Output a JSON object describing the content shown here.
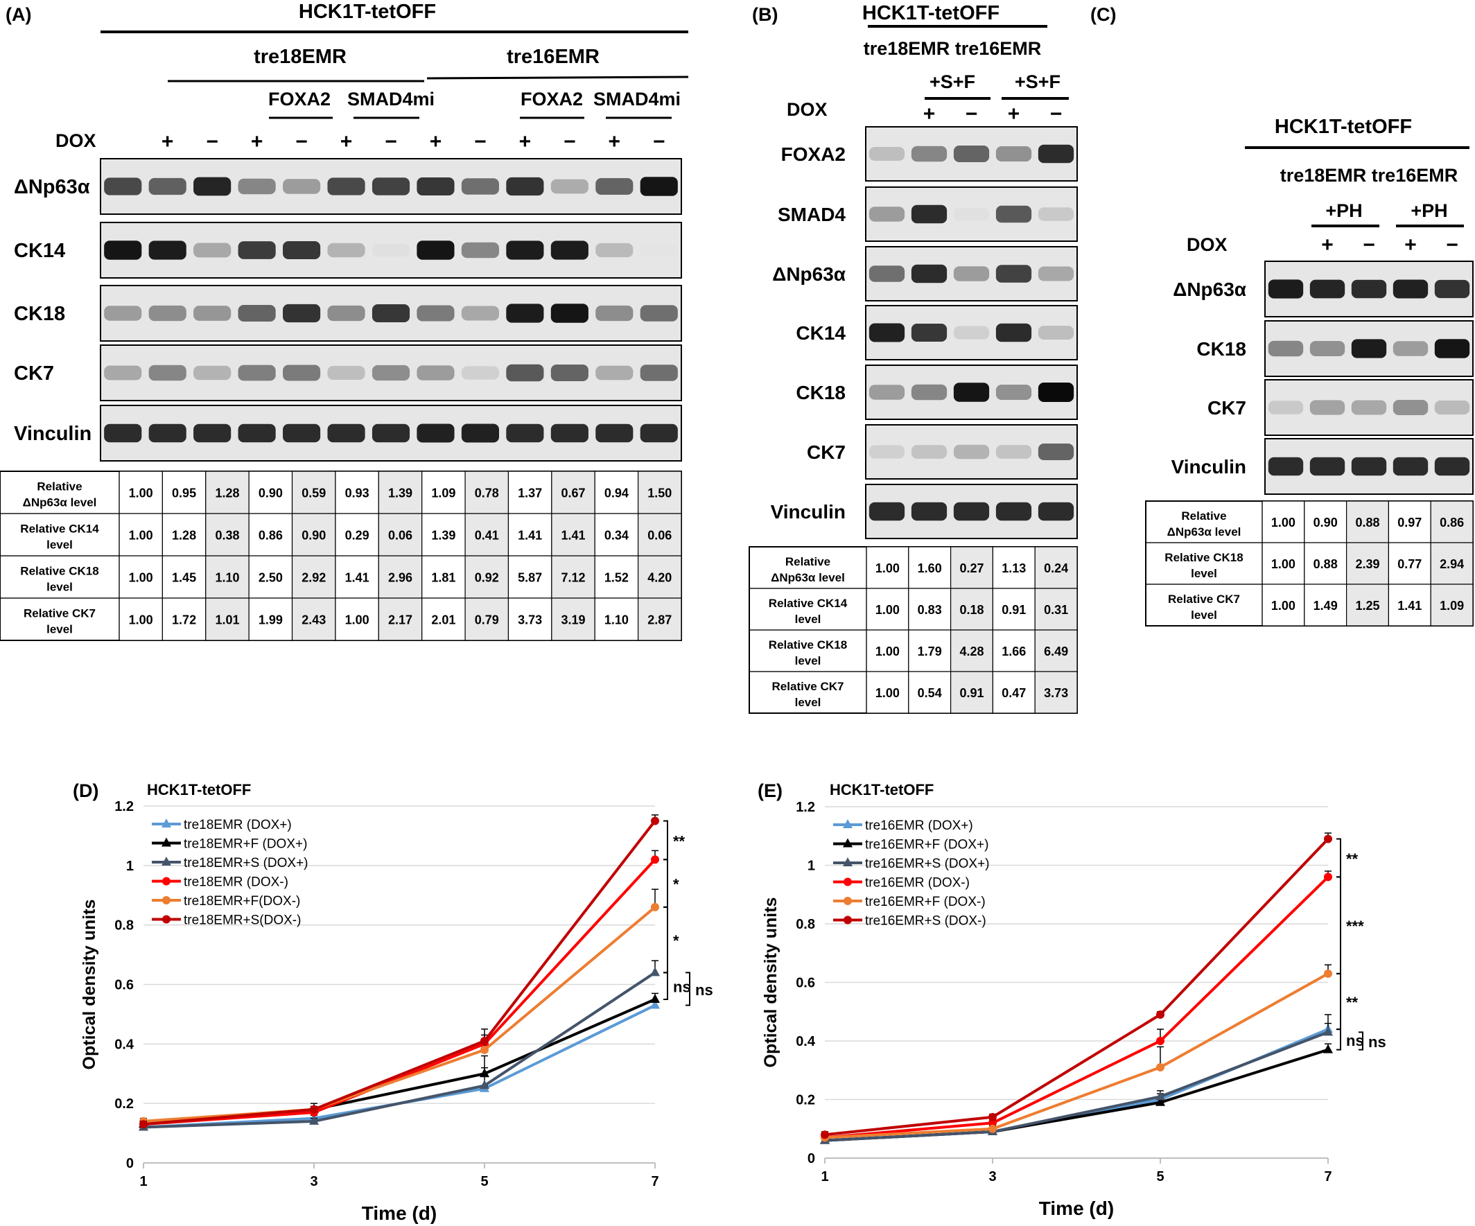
{
  "colors": {
    "tre": "#5b9bd5",
    "treF": "#000000",
    "treS": "#44546a",
    "treMinus": "#ff0000",
    "treFMinus": "#ed7d31",
    "treSMinus": "#c00000"
  },
  "panelA": {
    "letter": "(A)",
    "title": "HCK1T-tetOFF",
    "group1": "tre18EMR",
    "group2": "tre16EMR",
    "sub": [
      "FOXA2",
      "SMAD4mi",
      "FOXA2",
      "SMAD4mi"
    ],
    "dox_label": "DOX",
    "dox": [
      "+",
      "−",
      "+",
      "−",
      "+",
      "−",
      "+",
      "−",
      "+",
      "−",
      "+",
      "−"
    ],
    "blot_labels": [
      "ΔNp63α",
      "CK14",
      "CK18",
      "CK7",
      "Vinculin"
    ],
    "blot_int": [
      [
        0.72,
        0.62,
        0.88,
        0.45,
        0.35,
        0.72,
        0.75,
        0.8,
        0.55,
        0.82,
        0.28,
        0.6,
        0.95
      ],
      [
        0.95,
        0.92,
        0.3,
        0.78,
        0.8,
        0.25,
        0.05,
        0.95,
        0.45,
        0.92,
        0.92,
        0.22,
        0.03
      ],
      [
        0.35,
        0.42,
        0.38,
        0.6,
        0.82,
        0.42,
        0.8,
        0.5,
        0.3,
        0.92,
        0.95,
        0.42,
        0.55
      ],
      [
        0.3,
        0.45,
        0.25,
        0.48,
        0.5,
        0.2,
        0.42,
        0.35,
        0.12,
        0.65,
        0.6,
        0.28,
        0.55
      ],
      [
        0.85,
        0.85,
        0.85,
        0.85,
        0.85,
        0.85,
        0.85,
        0.9,
        0.9,
        0.85,
        0.85,
        0.85,
        0.85
      ]
    ],
    "rows": [
      {
        "label": [
          "Relative",
          "ΔNp63α level"
        ],
        "values": [
          "1.00",
          "0.95",
          "1.28",
          "0.90",
          "0.59",
          "0.93",
          "1.39",
          "1.09",
          "0.78",
          "1.37",
          "0.67",
          "0.94",
          "1.50"
        ]
      },
      {
        "label": [
          "Relative CK14",
          "level"
        ],
        "values": [
          "1.00",
          "1.28",
          "0.38",
          "0.86",
          "0.90",
          "0.29",
          "0.06",
          "1.39",
          "0.41",
          "1.41",
          "1.41",
          "0.34",
          "0.06"
        ]
      },
      {
        "label": [
          "Relative CK18",
          "level"
        ],
        "values": [
          "1.00",
          "1.45",
          "1.10",
          "2.50",
          "2.92",
          "1.41",
          "2.96",
          "1.81",
          "0.92",
          "5.87",
          "7.12",
          "1.52",
          "4.20"
        ]
      },
      {
        "label": [
          "Relative CK7",
          "level"
        ],
        "values": [
          "1.00",
          "1.72",
          "1.01",
          "1.99",
          "2.43",
          "1.00",
          "2.17",
          "2.01",
          "0.79",
          "3.73",
          "3.19",
          "1.10",
          "2.87"
        ]
      }
    ]
  },
  "panelB": {
    "letter": "(B)",
    "title": "HCK1T-tetOFF",
    "subtitle": "tre18EMR tre16EMR",
    "sf": [
      "+S+F",
      "+S+F"
    ],
    "dox_label": "DOX",
    "dox": [
      "+",
      "−",
      "+",
      "−"
    ],
    "blot_labels": [
      "FOXA2",
      "SMAD4",
      "ΔNp63α",
      "CK14",
      "CK18",
      "CK7",
      "Vinculin"
    ],
    "blot_int": [
      [
        0.2,
        0.45,
        0.6,
        0.4,
        0.85
      ],
      [
        0.35,
        0.85,
        0.05,
        0.65,
        0.15
      ],
      [
        0.55,
        0.85,
        0.35,
        0.75,
        0.3
      ],
      [
        0.9,
        0.8,
        0.12,
        0.85,
        0.2
      ],
      [
        0.35,
        0.45,
        0.95,
        0.4,
        1.0
      ],
      [
        0.12,
        0.18,
        0.25,
        0.18,
        0.6
      ],
      [
        0.85,
        0.85,
        0.85,
        0.85,
        0.85
      ]
    ],
    "rows": [
      {
        "label": [
          "Relative",
          "ΔNp63α level"
        ],
        "values": [
          "1.00",
          "1.60",
          "0.27",
          "1.13",
          "0.24"
        ]
      },
      {
        "label": [
          "Relative CK14",
          "level"
        ],
        "values": [
          "1.00",
          "0.83",
          "0.18",
          "0.91",
          "0.31"
        ]
      },
      {
        "label": [
          "Relative CK18",
          "level"
        ],
        "values": [
          "1.00",
          "1.79",
          "4.28",
          "1.66",
          "6.49"
        ]
      },
      {
        "label": [
          "Relative CK7",
          "level"
        ],
        "values": [
          "1.00",
          "0.54",
          "0.91",
          "0.47",
          "3.73"
        ]
      }
    ]
  },
  "panelC": {
    "letter": "(C)",
    "title": "HCK1T-tetOFF",
    "subtitle": "tre18EMR tre16EMR",
    "ph": [
      "+PH",
      "+PH"
    ],
    "dox_label": "DOX",
    "dox": [
      "+",
      "−",
      "+",
      "−"
    ],
    "blot_labels": [
      "ΔNp63α",
      "CK18",
      "CK7",
      "Vinculin"
    ],
    "blot_int": [
      [
        0.92,
        0.88,
        0.85,
        0.9,
        0.82
      ],
      [
        0.45,
        0.4,
        0.92,
        0.35,
        0.95
      ],
      [
        0.15,
        0.32,
        0.3,
        0.4,
        0.22
      ],
      [
        0.85,
        0.85,
        0.85,
        0.85,
        0.85
      ]
    ],
    "rows": [
      {
        "label": [
          "Relative",
          "ΔNp63α level"
        ],
        "values": [
          "1.00",
          "0.90",
          "0.88",
          "0.97",
          "0.86"
        ]
      },
      {
        "label": [
          "Relative CK18",
          "level"
        ],
        "values": [
          "1.00",
          "0.88",
          "2.39",
          "0.77",
          "2.94"
        ]
      },
      {
        "label": [
          "Relative CK7",
          "level"
        ],
        "values": [
          "1.00",
          "1.49",
          "1.25",
          "1.41",
          "1.09"
        ]
      }
    ]
  },
  "chart_data": [
    {
      "type": "line",
      "panel": "(D)",
      "title": "HCK1T-tetOFF",
      "xlabel": "Time (d)",
      "ylabel": "Optical density units",
      "x": [
        1,
        3,
        5,
        7
      ],
      "xticks": [
        "1",
        "3",
        "5",
        "7"
      ],
      "ylim": [
        0,
        1.2
      ],
      "yticks": [
        "0",
        "0.2",
        "0.4",
        "0.6",
        "0.8",
        "1",
        "1.2"
      ],
      "grid": true,
      "legend": "top-left",
      "series": [
        {
          "name": "tre18EMR (DOX+)",
          "values": [
            0.12,
            0.15,
            0.25,
            0.53
          ],
          "err": [
            0.01,
            0.01,
            0.01,
            0.01
          ],
          "color": "#5b9bd5",
          "marker": "triangle"
        },
        {
          "name": "tre18EMR+F (DOX+)",
          "values": [
            0.13,
            0.18,
            0.3,
            0.55
          ],
          "err": [
            0.01,
            0.02,
            0.02,
            0.02
          ],
          "color": "#000000",
          "marker": "triangle"
        },
        {
          "name": "tre18EMR+S (DOX+)",
          "values": [
            0.12,
            0.14,
            0.26,
            0.64
          ],
          "err": [
            0.01,
            0.01,
            0.1,
            0.04
          ],
          "color": "#44546a",
          "marker": "triangle"
        },
        {
          "name": "tre18EMR (DOX-)",
          "values": [
            0.13,
            0.17,
            0.4,
            1.02
          ],
          "err": [
            0.01,
            0.01,
            0.03,
            0.03
          ],
          "color": "#ff0000",
          "marker": "circle"
        },
        {
          "name": "tre18EMR+F(DOX-)",
          "values": [
            0.14,
            0.18,
            0.38,
            0.86
          ],
          "err": [
            0.01,
            0.01,
            0.03,
            0.06
          ],
          "color": "#ed7d31",
          "marker": "circle"
        },
        {
          "name": "tre18EMR+S(DOX-)",
          "values": [
            0.13,
            0.18,
            0.41,
            1.15
          ],
          "err": [
            0.01,
            0.01,
            0.04,
            0.02
          ],
          "color": "#c00000",
          "marker": "circle"
        }
      ],
      "annotations": [
        "**",
        "*",
        "*",
        "ns",
        "ns"
      ]
    },
    {
      "type": "line",
      "panel": "(E)",
      "title": "HCK1T-tetOFF",
      "xlabel": "Time (d)",
      "ylabel": "Optical density units",
      "x": [
        1,
        3,
        5,
        7
      ],
      "xticks": [
        "1",
        "3",
        "5",
        "7"
      ],
      "ylim": [
        0,
        1.2
      ],
      "yticks": [
        "0",
        "0.2",
        "0.4",
        "0.6",
        "0.8",
        "1",
        "1.2"
      ],
      "grid": true,
      "legend": "top-left",
      "series": [
        {
          "name": "tre16EMR (DOX+)",
          "values": [
            0.06,
            0.09,
            0.2,
            0.44
          ],
          "err": [
            0.01,
            0.01,
            0.02,
            0.05
          ],
          "color": "#5b9bd5",
          "marker": "triangle"
        },
        {
          "name": "tre16EMR+F (DOX+)",
          "values": [
            0.06,
            0.09,
            0.19,
            0.37
          ],
          "err": [
            0.01,
            0.01,
            0.01,
            0.02
          ],
          "color": "#000000",
          "marker": "triangle"
        },
        {
          "name": "tre16EMR+S (DOX+)",
          "values": [
            0.06,
            0.09,
            0.21,
            0.43
          ],
          "err": [
            0.01,
            0.01,
            0.02,
            0.03
          ],
          "color": "#44546a",
          "marker": "triangle"
        },
        {
          "name": "tre16EMR (DOX-)",
          "values": [
            0.07,
            0.12,
            0.4,
            0.96
          ],
          "err": [
            0.01,
            0.01,
            0.04,
            0.02
          ],
          "color": "#ff0000",
          "marker": "circle"
        },
        {
          "name": "tre16EMR+F (DOX-)",
          "values": [
            0.07,
            0.1,
            0.31,
            0.63
          ],
          "err": [
            0.01,
            0.01,
            0.07,
            0.03
          ],
          "color": "#ed7d31",
          "marker": "circle"
        },
        {
          "name": "tre16EMR+S (DOX-)",
          "values": [
            0.08,
            0.14,
            0.49,
            1.09
          ],
          "err": [
            0.01,
            0.01,
            0.01,
            0.02
          ],
          "color": "#c00000",
          "marker": "circle"
        }
      ],
      "annotations": [
        "**",
        "***",
        "**",
        "ns",
        "ns"
      ]
    }
  ]
}
